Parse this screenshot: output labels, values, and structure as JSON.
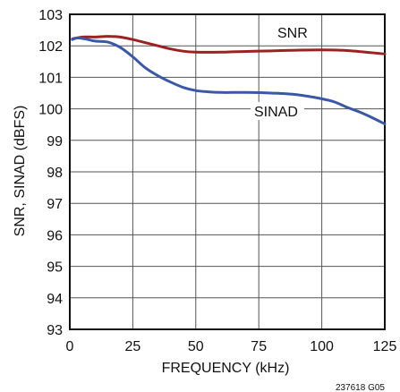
{
  "chart_data": {
    "type": "line",
    "title": "",
    "xlabel": "FREQUENCY (kHz)",
    "ylabel": "SNR, SINAD (dBFS)",
    "xlim": [
      0,
      125
    ],
    "ylim": [
      93,
      103
    ],
    "xticks": [
      0,
      25,
      50,
      75,
      100,
      125
    ],
    "yticks": [
      93,
      94,
      95,
      96,
      97,
      98,
      99,
      100,
      101,
      102,
      103
    ],
    "grid": true,
    "figure_id": "237618 G05",
    "series": [
      {
        "name": "SNR",
        "color": "#9b2222",
        "x": [
          1,
          5,
          10,
          15,
          20,
          25,
          30,
          35,
          40,
          45,
          50,
          60,
          70,
          80,
          90,
          100,
          110,
          120,
          125
        ],
        "y": [
          102.22,
          102.28,
          102.28,
          102.3,
          102.28,
          102.2,
          102.1,
          102.0,
          101.9,
          101.83,
          101.8,
          101.8,
          101.82,
          101.84,
          101.86,
          101.87,
          101.85,
          101.78,
          101.74
        ]
      },
      {
        "name": "SINAD",
        "color": "#3a58a8",
        "x": [
          1,
          3,
          6,
          10,
          15,
          20,
          25,
          30,
          35,
          40,
          45,
          50,
          55,
          60,
          70,
          80,
          90,
          100,
          105,
          110,
          115,
          120,
          125
        ],
        "y": [
          102.2,
          102.25,
          102.22,
          102.15,
          102.12,
          101.95,
          101.65,
          101.3,
          101.05,
          100.85,
          100.68,
          100.58,
          100.54,
          100.52,
          100.52,
          100.5,
          100.45,
          100.32,
          100.22,
          100.05,
          99.9,
          99.72,
          99.52
        ]
      }
    ]
  }
}
